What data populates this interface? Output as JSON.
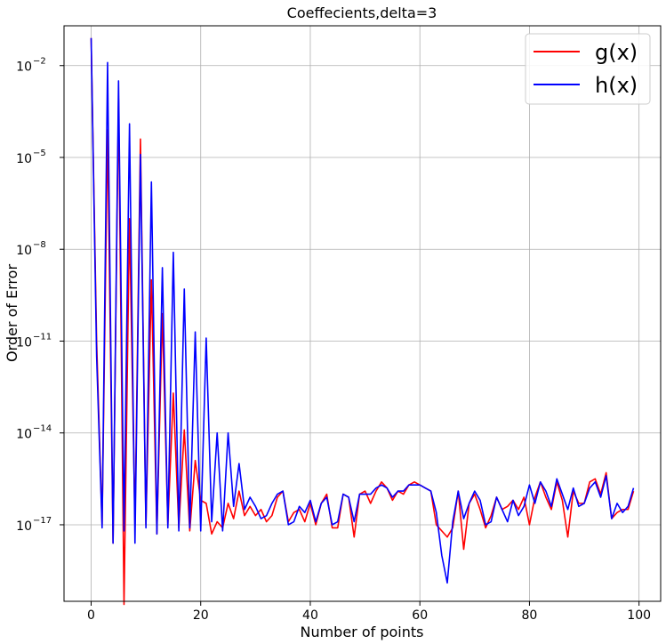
{
  "chart_data": {
    "type": "line",
    "title": "Coeffecients,delta=3",
    "xlabel": "Number of points",
    "ylabel": "Order of Error",
    "xlim": [
      -4.95,
      103.95
    ],
    "ylim_log10": [
      -19.5,
      -0.7
    ],
    "yscale": "log",
    "grid": true,
    "legend_position": "top-right",
    "x_ticks": [
      0,
      20,
      40,
      60,
      80,
      100
    ],
    "y_ticks": [
      {
        "exp": -2,
        "base": "10",
        "label": "−2"
      },
      {
        "exp": -5,
        "base": "10",
        "label": "−5"
      },
      {
        "exp": -8,
        "base": "10",
        "label": "−8"
      },
      {
        "exp": -11,
        "base": "10",
        "label": "−11"
      },
      {
        "exp": -14,
        "base": "10",
        "label": "−14"
      },
      {
        "exp": -17,
        "base": "10",
        "label": "−17"
      }
    ],
    "series": [
      {
        "name": "g(x)",
        "color": "#ff0000",
        "x_start": 0,
        "log10_values": [
          -1.1,
          -11.0,
          -17.0,
          -4.1,
          -17.6,
          -3.1,
          -19.6,
          -7.0,
          -17.0,
          -4.4,
          -17.0,
          -9.0,
          -17.3,
          -10.1,
          -17.0,
          -12.7,
          -17.1,
          -13.9,
          -17.2,
          -14.9,
          -16.2,
          -16.3,
          -17.3,
          -16.9,
          -17.1,
          -16.3,
          -16.8,
          -15.9,
          -16.7,
          -16.4,
          -16.7,
          -16.5,
          -16.9,
          -16.7,
          -16.1,
          -15.9,
          -16.9,
          -16.6,
          -16.5,
          -16.9,
          -16.3,
          -17.0,
          -16.3,
          -16.0,
          -17.1,
          -17.1,
          -16.0,
          -16.1,
          -17.4,
          -16.0,
          -15.9,
          -16.3,
          -15.9,
          -15.6,
          -15.8,
          -16.2,
          -15.9,
          -16.0,
          -15.7,
          -15.6,
          -15.7,
          -15.8,
          -15.9,
          -17.0,
          -17.2,
          -17.4,
          -17.1,
          -15.9,
          -17.8,
          -16.3,
          -16.0,
          -16.5,
          -17.1,
          -16.7,
          -16.1,
          -16.5,
          -16.4,
          -16.2,
          -16.5,
          -16.1,
          -17.0,
          -16.1,
          -15.6,
          -16.1,
          -16.5,
          -15.6,
          -16.2,
          -17.4,
          -15.9,
          -16.3,
          -16.3,
          -15.6,
          -15.5,
          -16.0,
          -15.3,
          -16.8,
          -16.6,
          -16.5,
          -16.5,
          -15.9
        ]
      },
      {
        "name": "h(x)",
        "color": "#0000ff",
        "x_start": 0,
        "log10_values": [
          -1.1,
          -11.5,
          -17.1,
          -1.9,
          -17.6,
          -2.5,
          -17.2,
          -3.9,
          -17.6,
          -4.9,
          -17.1,
          -5.8,
          -17.3,
          -8.6,
          -17.1,
          -8.1,
          -17.2,
          -9.3,
          -17.1,
          -10.7,
          -17.2,
          -10.9,
          -16.9,
          -14.0,
          -17.2,
          -14.0,
          -16.4,
          -15.0,
          -16.5,
          -16.1,
          -16.4,
          -16.8,
          -16.7,
          -16.3,
          -16.0,
          -15.9,
          -17.0,
          -16.9,
          -16.4,
          -16.6,
          -16.2,
          -16.9,
          -16.3,
          -16.1,
          -17.0,
          -16.9,
          -16.0,
          -16.1,
          -16.9,
          -16.0,
          -16.0,
          -16.0,
          -15.8,
          -15.7,
          -15.8,
          -16.1,
          -15.9,
          -15.9,
          -15.7,
          -15.7,
          -15.7,
          -15.8,
          -15.9,
          -16.6,
          -18.0,
          -18.9,
          -16.9,
          -15.9,
          -16.8,
          -16.3,
          -15.9,
          -16.2,
          -17.0,
          -16.9,
          -16.1,
          -16.5,
          -16.9,
          -16.2,
          -16.7,
          -16.4,
          -15.7,
          -16.3,
          -15.6,
          -15.9,
          -16.4,
          -15.5,
          -16.0,
          -16.5,
          -15.8,
          -16.4,
          -16.3,
          -15.8,
          -15.6,
          -16.1,
          -15.4,
          -16.8,
          -16.3,
          -16.6,
          -16.4,
          -15.8
        ]
      }
    ]
  }
}
